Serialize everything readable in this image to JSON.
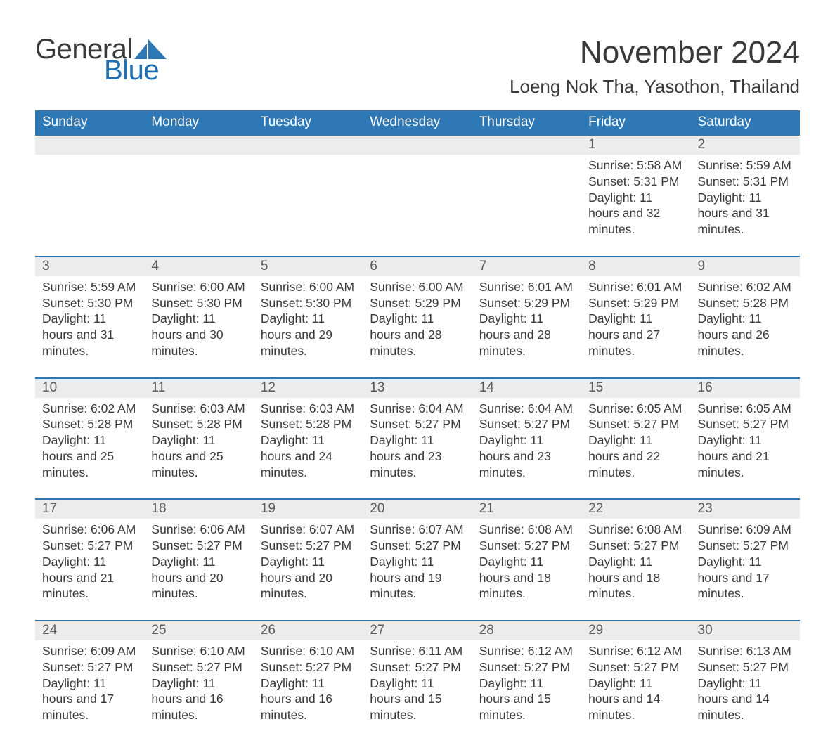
{
  "logo": {
    "word1": "General",
    "word2": "Blue",
    "text_color": "#3a3a3a",
    "accent_color": "#1f6fb2"
  },
  "header": {
    "month_title": "November 2024",
    "location": "Loeng Nok Tha, Yasothon, Thailand"
  },
  "colors": {
    "header_bg": "#2e78b6",
    "header_text": "#ffffff",
    "row_border": "#2e78b6",
    "daynum_bg": "#ececec",
    "body_text": "#3a3a3a",
    "page_bg": "#ffffff"
  },
  "typography": {
    "title_fontsize": 44,
    "location_fontsize": 26,
    "dayname_fontsize": 19,
    "daynum_fontsize": 19,
    "detail_fontsize": 17.5
  },
  "calendar": {
    "type": "table",
    "day_names": [
      "Sunday",
      "Monday",
      "Tuesday",
      "Wednesday",
      "Thursday",
      "Friday",
      "Saturday"
    ],
    "weeks": [
      [
        null,
        null,
        null,
        null,
        null,
        {
          "n": "1",
          "sunrise": "5:58 AM",
          "sunset": "5:31 PM",
          "daylight": "11 hours and 32 minutes."
        },
        {
          "n": "2",
          "sunrise": "5:59 AM",
          "sunset": "5:31 PM",
          "daylight": "11 hours and 31 minutes."
        }
      ],
      [
        {
          "n": "3",
          "sunrise": "5:59 AM",
          "sunset": "5:30 PM",
          "daylight": "11 hours and 31 minutes."
        },
        {
          "n": "4",
          "sunrise": "6:00 AM",
          "sunset": "5:30 PM",
          "daylight": "11 hours and 30 minutes."
        },
        {
          "n": "5",
          "sunrise": "6:00 AM",
          "sunset": "5:30 PM",
          "daylight": "11 hours and 29 minutes."
        },
        {
          "n": "6",
          "sunrise": "6:00 AM",
          "sunset": "5:29 PM",
          "daylight": "11 hours and 28 minutes."
        },
        {
          "n": "7",
          "sunrise": "6:01 AM",
          "sunset": "5:29 PM",
          "daylight": "11 hours and 28 minutes."
        },
        {
          "n": "8",
          "sunrise": "6:01 AM",
          "sunset": "5:29 PM",
          "daylight": "11 hours and 27 minutes."
        },
        {
          "n": "9",
          "sunrise": "6:02 AM",
          "sunset": "5:28 PM",
          "daylight": "11 hours and 26 minutes."
        }
      ],
      [
        {
          "n": "10",
          "sunrise": "6:02 AM",
          "sunset": "5:28 PM",
          "daylight": "11 hours and 25 minutes."
        },
        {
          "n": "11",
          "sunrise": "6:03 AM",
          "sunset": "5:28 PM",
          "daylight": "11 hours and 25 minutes."
        },
        {
          "n": "12",
          "sunrise": "6:03 AM",
          "sunset": "5:28 PM",
          "daylight": "11 hours and 24 minutes."
        },
        {
          "n": "13",
          "sunrise": "6:04 AM",
          "sunset": "5:27 PM",
          "daylight": "11 hours and 23 minutes."
        },
        {
          "n": "14",
          "sunrise": "6:04 AM",
          "sunset": "5:27 PM",
          "daylight": "11 hours and 23 minutes."
        },
        {
          "n": "15",
          "sunrise": "6:05 AM",
          "sunset": "5:27 PM",
          "daylight": "11 hours and 22 minutes."
        },
        {
          "n": "16",
          "sunrise": "6:05 AM",
          "sunset": "5:27 PM",
          "daylight": "11 hours and 21 minutes."
        }
      ],
      [
        {
          "n": "17",
          "sunrise": "6:06 AM",
          "sunset": "5:27 PM",
          "daylight": "11 hours and 21 minutes."
        },
        {
          "n": "18",
          "sunrise": "6:06 AM",
          "sunset": "5:27 PM",
          "daylight": "11 hours and 20 minutes."
        },
        {
          "n": "19",
          "sunrise": "6:07 AM",
          "sunset": "5:27 PM",
          "daylight": "11 hours and 20 minutes."
        },
        {
          "n": "20",
          "sunrise": "6:07 AM",
          "sunset": "5:27 PM",
          "daylight": "11 hours and 19 minutes."
        },
        {
          "n": "21",
          "sunrise": "6:08 AM",
          "sunset": "5:27 PM",
          "daylight": "11 hours and 18 minutes."
        },
        {
          "n": "22",
          "sunrise": "6:08 AM",
          "sunset": "5:27 PM",
          "daylight": "11 hours and 18 minutes."
        },
        {
          "n": "23",
          "sunrise": "6:09 AM",
          "sunset": "5:27 PM",
          "daylight": "11 hours and 17 minutes."
        }
      ],
      [
        {
          "n": "24",
          "sunrise": "6:09 AM",
          "sunset": "5:27 PM",
          "daylight": "11 hours and 17 minutes."
        },
        {
          "n": "25",
          "sunrise": "6:10 AM",
          "sunset": "5:27 PM",
          "daylight": "11 hours and 16 minutes."
        },
        {
          "n": "26",
          "sunrise": "6:10 AM",
          "sunset": "5:27 PM",
          "daylight": "11 hours and 16 minutes."
        },
        {
          "n": "27",
          "sunrise": "6:11 AM",
          "sunset": "5:27 PM",
          "daylight": "11 hours and 15 minutes."
        },
        {
          "n": "28",
          "sunrise": "6:12 AM",
          "sunset": "5:27 PM",
          "daylight": "11 hours and 15 minutes."
        },
        {
          "n": "29",
          "sunrise": "6:12 AM",
          "sunset": "5:27 PM",
          "daylight": "11 hours and 14 minutes."
        },
        {
          "n": "30",
          "sunrise": "6:13 AM",
          "sunset": "5:27 PM",
          "daylight": "11 hours and 14 minutes."
        }
      ]
    ],
    "labels": {
      "sunrise": "Sunrise:",
      "sunset": "Sunset:",
      "daylight": "Daylight:"
    }
  }
}
